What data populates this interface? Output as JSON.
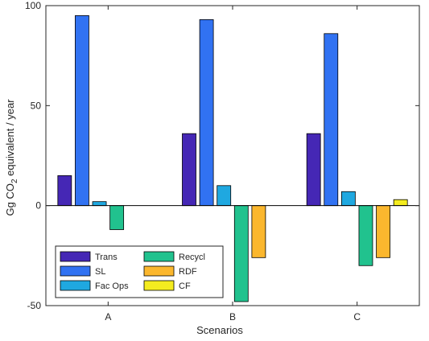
{
  "chart_data": {
    "type": "bar",
    "title": "",
    "xlabel": "Scenarios",
    "ylabel": {
      "before": "Gg CO",
      "subscript": "2",
      "after": " equivalent / year"
    },
    "ylim": [
      -50,
      100
    ],
    "yticks": [
      -50,
      0,
      50,
      100
    ],
    "categories": [
      "A",
      "B",
      "C"
    ],
    "series": [
      {
        "name": "Trans",
        "color": "#4527b5",
        "values": [
          15,
          36,
          36
        ]
      },
      {
        "name": "SL",
        "color": "#3172f2",
        "values": [
          95,
          93,
          86
        ]
      },
      {
        "name": "Fac Ops",
        "color": "#1fa8e0",
        "values": [
          2,
          10,
          7
        ]
      },
      {
        "name": "Recycl",
        "color": "#21c28e",
        "values": [
          -12,
          -48,
          -30
        ]
      },
      {
        "name": "RDF",
        "color": "#fbb72e",
        "values": [
          0,
          -26,
          -26
        ]
      },
      {
        "name": "CF",
        "color": "#f4ec1f",
        "values": [
          0,
          0,
          3
        ]
      }
    ],
    "legend": {
      "placement": "bottom-left",
      "columns": 2
    },
    "grid": false,
    "zero_line": true
  }
}
